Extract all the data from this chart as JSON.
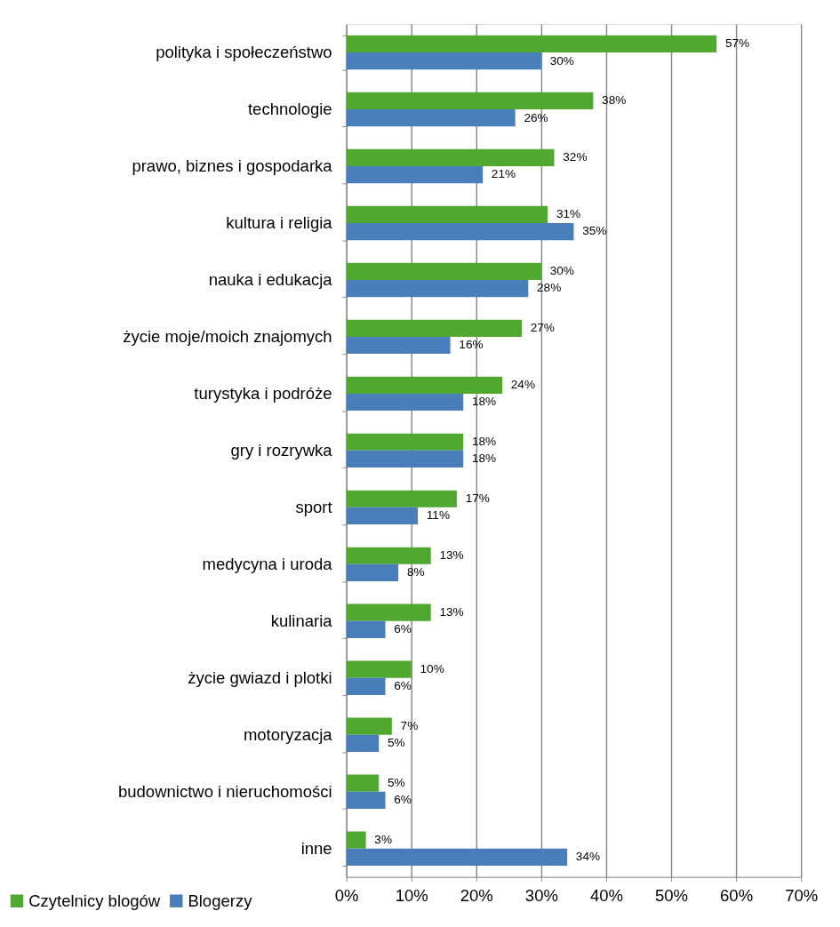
{
  "chart_data": {
    "type": "bar",
    "orientation": "horizontal",
    "categories": [
      "polityka i społeczeństwo",
      "technologie",
      "prawo, biznes i gospodarka",
      "kultura i religia",
      "nauka i edukacja",
      "życie moje/moich znajomych",
      "turystyka i podróże",
      "gry i rozrywka",
      "sport",
      "medycyna i uroda",
      "kulinaria",
      "życie gwiazd i plotki",
      "motoryzacja",
      "budownictwo i nieruchomości",
      "inne"
    ],
    "series": [
      {
        "name": "Czytelnicy blogów",
        "color": "#4fa82f",
        "values": [
          57,
          38,
          32,
          31,
          30,
          27,
          24,
          18,
          17,
          13,
          13,
          10,
          7,
          5,
          3
        ],
        "value_labels": [
          "57%",
          "38%",
          "32%",
          "31%",
          "30%",
          "27%",
          "24%",
          "18%",
          "17%",
          "13%",
          "13%",
          "10%",
          "7%",
          "5%",
          "3%"
        ]
      },
      {
        "name": "Blogerzy",
        "color": "#4a7ebb",
        "values": [
          30,
          26,
          21,
          35,
          28,
          16,
          18,
          18,
          11,
          8,
          6,
          6,
          5,
          6,
          34
        ],
        "value_labels": [
          "30%",
          "26%",
          "21%",
          "35%",
          "28%",
          "16%",
          "18%",
          "18%",
          "11%",
          "8%",
          "6%",
          "6%",
          "5%",
          "6%",
          "34%"
        ]
      }
    ],
    "xlim": [
      0,
      70
    ],
    "xticks": [
      {
        "value": 0,
        "label": "0%"
      },
      {
        "value": 10,
        "label": "10%"
      },
      {
        "value": 20,
        "label": "20%"
      },
      {
        "value": 30,
        "label": "30%"
      },
      {
        "value": 40,
        "label": "40%"
      },
      {
        "value": 50,
        "label": "50%"
      },
      {
        "value": 60,
        "label": "60%"
      },
      {
        "value": 70,
        "label": "70%"
      }
    ],
    "grid": "x",
    "legend": "bottom left"
  }
}
